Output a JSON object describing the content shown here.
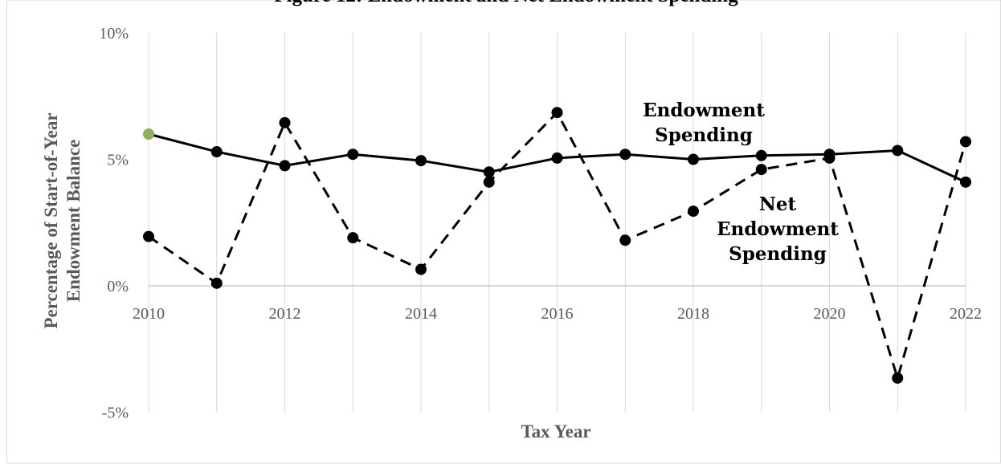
{
  "chart_data": {
    "type": "line",
    "title": "Figure 12: Endowment and Net Endowment Spending",
    "xlabel": "Tax Year",
    "ylabel_lines": [
      "Percentage of Start-of-Year",
      "Endowment Balance"
    ],
    "x": [
      2010,
      2011,
      2012,
      2013,
      2014,
      2015,
      2016,
      2017,
      2018,
      2019,
      2020,
      2021,
      2022
    ],
    "x_ticks": [
      2010,
      2012,
      2014,
      2016,
      2018,
      2020,
      2022
    ],
    "x_tick_labels": [
      "2010",
      "2012",
      "2014",
      "2016",
      "2018",
      "2020",
      "2022"
    ],
    "y_ticks": [
      -5,
      0,
      5,
      10
    ],
    "y_tick_labels": [
      "-5%",
      "0%",
      "5%",
      "10%"
    ],
    "ylim": [
      -5,
      10
    ],
    "grid": "vertical",
    "series": [
      {
        "name": "Endowment Spending",
        "style": "solid",
        "color": "#000000",
        "first_marker_color": "#8db153",
        "values": [
          6.0,
          5.3,
          4.75,
          5.2,
          4.95,
          4.5,
          5.05,
          5.2,
          5.0,
          5.15,
          5.2,
          5.35,
          4.1
        ]
      },
      {
        "name": "Net Endowment Spending",
        "style": "dashed",
        "color": "#000000",
        "values": [
          1.95,
          0.1,
          6.45,
          1.9,
          0.65,
          4.1,
          6.85,
          1.8,
          2.95,
          4.6,
          5.05,
          -3.65,
          5.7
        ]
      }
    ],
    "annotations": [
      {
        "series": "Endowment Spending",
        "lines": [
          "Endowment",
          "Spending"
        ]
      },
      {
        "series": "Net Endowment Spending",
        "lines": [
          "Net",
          "Endowment",
          "Spending"
        ]
      }
    ]
  }
}
